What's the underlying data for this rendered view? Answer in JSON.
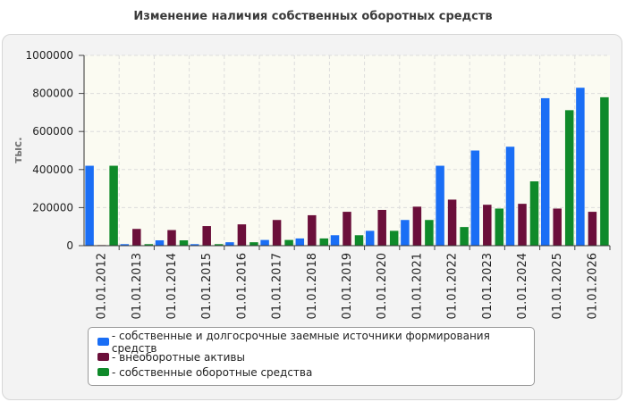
{
  "title": "Изменение наличия собственных оборотных средств",
  "chart_data": {
    "type": "bar",
    "title": "Изменение наличия собственных оборотных средств",
    "ylabel": "тыс.",
    "xlabel": "",
    "ylim": [
      0,
      1000000
    ],
    "yticks": [
      "0",
      "200000",
      "400000",
      "600000",
      "800000",
      "1000000"
    ],
    "grid": true,
    "legend_position": "bottom",
    "categories": [
      "01.01.2012",
      "01.01.2013",
      "01.01.2014",
      "01.01.2015",
      "01.01.2016",
      "01.01.2017",
      "01.01.2018",
      "01.01.2019",
      "01.01.2020",
      "01.01.2021",
      "01.01.2022",
      "01.01.2023",
      "01.01.2024",
      "01.01.2025",
      "01.01.2026"
    ],
    "series": [
      {
        "name": "- собственные и долгосрочные заемные источники формирования средств",
        "color": "#1a6ef5",
        "values": [
          420000,
          8000,
          28000,
          8000,
          18000,
          30000,
          38000,
          55000,
          78000,
          135000,
          420000,
          500000,
          520000,
          775000,
          830000
        ]
      },
      {
        "name": "- внеоборотные активы",
        "color": "#6b0f3a",
        "values": [
          3000,
          88000,
          82000,
          103000,
          112000,
          135000,
          160000,
          178000,
          188000,
          205000,
          242000,
          215000,
          220000,
          195000,
          178000
        ]
      },
      {
        "name": "- собственные оборотные средства",
        "color": "#0f8a2a",
        "values": [
          420000,
          8000,
          28000,
          8000,
          18000,
          30000,
          38000,
          55000,
          78000,
          135000,
          98000,
          195000,
          338000,
          712000,
          780000
        ]
      }
    ]
  }
}
